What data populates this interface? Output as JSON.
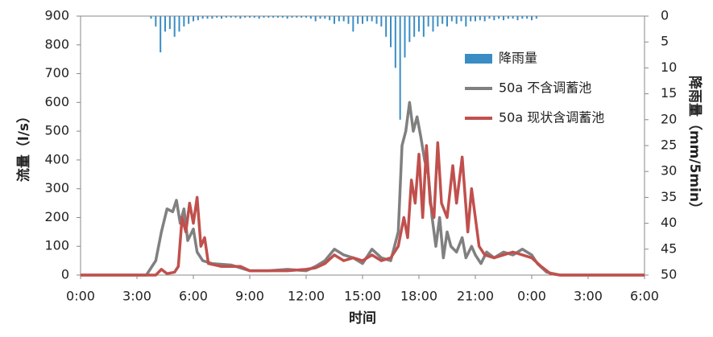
{
  "chart_data": {
    "type": "line",
    "xlabel": "时间",
    "ylabel": "流量（l/s）",
    "y2label": "降雨量（mm/5min）",
    "xlim": [
      0,
      30
    ],
    "xticks": [
      {
        "value": 0,
        "label": "0:00"
      },
      {
        "value": 3,
        "label": "3:00"
      },
      {
        "value": 6,
        "label": "6:00"
      },
      {
        "value": 9,
        "label": "9:00"
      },
      {
        "value": 12,
        "label": "12:00"
      },
      {
        "value": 15,
        "label": "15:00"
      },
      {
        "value": 18,
        "label": "18:00"
      },
      {
        "value": 21,
        "label": "21:00"
      },
      {
        "value": 24,
        "label": "0:00"
      },
      {
        "value": 27,
        "label": "3:00"
      },
      {
        "value": 30,
        "label": "6:00"
      }
    ],
    "ylim": [
      0,
      900
    ],
    "yticks": [
      0,
      100,
      200,
      300,
      400,
      500,
      600,
      700,
      800,
      900
    ],
    "y2lim": [
      0,
      50
    ],
    "y2ticks": [
      0,
      5,
      10,
      15,
      20,
      25,
      30,
      35,
      40,
      45,
      50
    ],
    "y2_inverted": true,
    "legend": "right",
    "series": [
      {
        "name": "降雨量",
        "type": "bar",
        "axis": "y2",
        "color": "#3a8dc4",
        "x": [
          3.75,
          4,
          4.25,
          4.5,
          4.75,
          5,
          5.25,
          5.5,
          5.75,
          6,
          6.25,
          6.5,
          6.75,
          7,
          7.25,
          7.5,
          7.75,
          8,
          8.25,
          8.5,
          8.75,
          9,
          9.25,
          9.5,
          9.75,
          10,
          10.25,
          10.5,
          10.75,
          11,
          11.25,
          11.5,
          11.75,
          12,
          12.25,
          12.5,
          12.75,
          13,
          13.25,
          13.5,
          13.75,
          14,
          14.25,
          14.5,
          14.75,
          15,
          15.25,
          15.5,
          15.75,
          16,
          16.25,
          16.5,
          16.75,
          17,
          17.25,
          17.5,
          17.75,
          18,
          18.25,
          18.5,
          18.75,
          19,
          19.25,
          19.5,
          19.75,
          20,
          20.25,
          20.5,
          20.75,
          21,
          21.25,
          21.5,
          21.75,
          22,
          22.25,
          22.5,
          22.75,
          23,
          23.25,
          23.5,
          23.75,
          24,
          24.25
        ],
        "values": [
          0.5,
          2,
          7,
          3,
          2.5,
          4,
          3,
          2,
          1.5,
          1,
          0.8,
          0.5,
          0.5,
          0.5,
          0.3,
          0.5,
          0.3,
          0.3,
          0.3,
          0.5,
          0.3,
          0.3,
          0.3,
          0.5,
          0.3,
          0.3,
          0.3,
          0.3,
          0.3,
          0.5,
          0.3,
          0.3,
          0.3,
          0.3,
          0.5,
          1,
          0.5,
          0.5,
          0.8,
          1.5,
          1,
          1,
          1.5,
          3,
          1.5,
          1.5,
          1,
          1,
          1.5,
          2,
          4,
          6,
          10,
          20,
          8,
          5,
          4,
          3,
          4,
          2,
          3,
          2,
          1.5,
          2,
          1,
          1.5,
          1,
          2,
          1,
          1,
          0.8,
          1,
          0.5,
          0.8,
          0.5,
          0.8,
          0.5,
          0.5,
          0.8,
          0.5,
          0.5,
          0.8,
          0.5
        ]
      },
      {
        "name": "50a 不含调蓄池",
        "color": "#808080",
        "x": [
          0,
          3.5,
          4,
          4.3,
          4.6,
          4.9,
          5.1,
          5.3,
          5.5,
          5.7,
          6,
          6.2,
          6.5,
          7,
          8,
          8.5,
          9,
          10,
          11,
          12,
          12.5,
          13,
          13.5,
          14,
          14.5,
          15,
          15.5,
          16,
          16.5,
          16.9,
          17.1,
          17.3,
          17.5,
          17.7,
          17.9,
          18.1,
          18.3,
          18.5,
          18.7,
          18.9,
          19.1,
          19.3,
          19.5,
          19.7,
          20,
          20.3,
          20.5,
          20.8,
          21,
          21.3,
          21.6,
          22,
          22.5,
          23,
          23.5,
          24,
          24.3,
          24.8,
          25.5,
          30
        ],
        "values": [
          0,
          0,
          50,
          150,
          230,
          220,
          260,
          180,
          230,
          120,
          160,
          80,
          50,
          40,
          35,
          25,
          15,
          15,
          20,
          15,
          30,
          50,
          90,
          70,
          60,
          40,
          90,
          60,
          50,
          150,
          450,
          500,
          600,
          500,
          550,
          480,
          400,
          350,
          200,
          100,
          200,
          60,
          150,
          100,
          80,
          130,
          60,
          100,
          70,
          40,
          80,
          60,
          80,
          70,
          90,
          70,
          40,
          10,
          0,
          0
        ]
      },
      {
        "name": "50a 现状含调蓄池",
        "color": "#c0504d",
        "x": [
          0,
          4,
          4.3,
          4.6,
          5,
          5.2,
          5.4,
          5.6,
          5.8,
          6,
          6.2,
          6.4,
          6.6,
          6.8,
          7.5,
          8.5,
          9,
          10,
          11,
          12,
          12.5,
          13,
          13.5,
          14,
          14.5,
          15,
          15.5,
          16,
          16.5,
          16.9,
          17.2,
          17.4,
          17.6,
          17.8,
          18,
          18.2,
          18.4,
          18.6,
          18.8,
          19,
          19.2,
          19.5,
          19.8,
          20,
          20.3,
          20.6,
          20.8,
          21,
          21.2,
          21.5,
          22,
          22.5,
          23,
          23.5,
          24,
          24.5,
          25,
          25.5,
          30
        ],
        "values": [
          0,
          0,
          20,
          5,
          10,
          30,
          200,
          150,
          250,
          180,
          270,
          100,
          130,
          40,
          30,
          30,
          15,
          15,
          15,
          20,
          25,
          40,
          70,
          50,
          60,
          50,
          70,
          50,
          60,
          100,
          200,
          130,
          330,
          250,
          420,
          200,
          450,
          250,
          200,
          460,
          250,
          200,
          380,
          250,
          410,
          150,
          300,
          200,
          100,
          70,
          60,
          70,
          80,
          70,
          60,
          30,
          5,
          0,
          0
        ]
      }
    ]
  }
}
